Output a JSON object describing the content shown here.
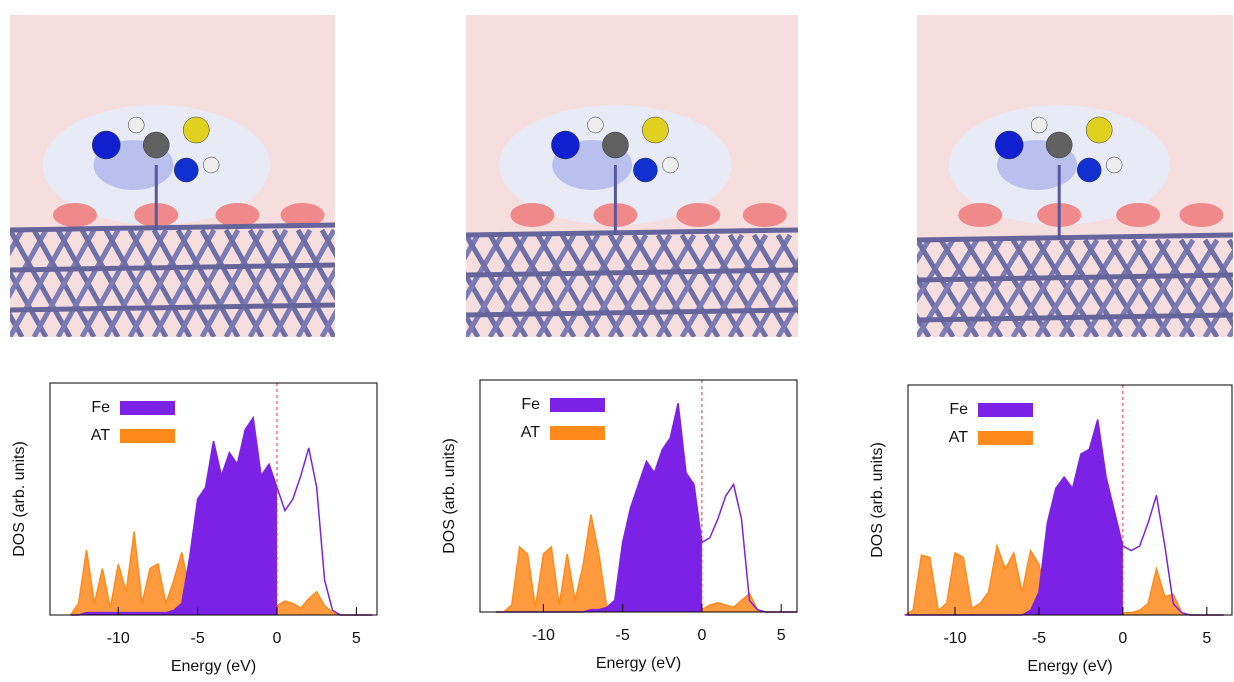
{
  "chart_data": [
    {
      "type": "dos",
      "x_label": "Energy (eV)",
      "y_label": "DOS (arb. units)",
      "xlim": [
        -14.3,
        6.3
      ],
      "ylim": [
        0,
        1
      ],
      "xticks": [
        -10,
        -5,
        0,
        5
      ],
      "fermi_level": 0,
      "x": [
        -13,
        -12.5,
        -12,
        -11.5,
        -11,
        -10.5,
        -10,
        -9.5,
        -9,
        -8.5,
        -8,
        -7.5,
        -7,
        -6.5,
        -6,
        -5.5,
        -5,
        -4.5,
        -4,
        -3.5,
        -3,
        -2.5,
        -2,
        -1.5,
        -1,
        -0.5,
        0,
        0.5,
        1,
        1.5,
        2,
        2.5,
        3,
        3.5,
        4,
        4.5,
        5,
        5.5,
        6
      ],
      "series": [
        {
          "name": "Fe",
          "color": "#7b22e6",
          "values": [
            0,
            0,
            0.01,
            0.01,
            0.01,
            0.01,
            0.01,
            0.01,
            0.01,
            0.01,
            0.01,
            0.01,
            0.01,
            0.02,
            0.05,
            0.25,
            0.5,
            0.55,
            0.75,
            0.6,
            0.7,
            0.65,
            0.8,
            0.85,
            0.6,
            0.65,
            0.55,
            0.45,
            0.5,
            0.6,
            0.72,
            0.55,
            0.15,
            0.02,
            0,
            0,
            0,
            0,
            0
          ]
        },
        {
          "name": "AT",
          "color": "#ff8a1c",
          "values": [
            0,
            0.05,
            0.28,
            0.05,
            0.2,
            0.03,
            0.22,
            0.1,
            0.36,
            0.05,
            0.2,
            0.22,
            0.05,
            0.15,
            0.27,
            0.1,
            0.2,
            0.3,
            0.2,
            0.08,
            0.05,
            0.06,
            0.05,
            0.04,
            0.05,
            0.04,
            0.04,
            0.06,
            0.05,
            0.03,
            0.07,
            0.1,
            0.04,
            0.01,
            0,
            0,
            0,
            0,
            0
          ]
        }
      ]
    },
    {
      "type": "dos",
      "x_label": "Energy (eV)",
      "y_label": "DOS (arb. units)",
      "xlim": [
        -14,
        6
      ],
      "ylim": [
        0,
        1
      ],
      "xticks": [
        -10,
        -5,
        0,
        5
      ],
      "fermi_level": 0,
      "x": [
        -13,
        -12.5,
        -12,
        -11.5,
        -11,
        -10.5,
        -10,
        -9.5,
        -9,
        -8.5,
        -8,
        -7.5,
        -7,
        -6.5,
        -6,
        -5.5,
        -5,
        -4.5,
        -4,
        -3.5,
        -3,
        -2.5,
        -2,
        -1.5,
        -1,
        -0.5,
        0,
        0.5,
        1,
        1.5,
        2,
        2.5,
        3,
        3.5,
        4,
        4.5,
        5,
        5.5,
        6
      ],
      "series": [
        {
          "name": "Fe",
          "color": "#7b22e6",
          "values": [
            0,
            0,
            0,
            0,
            0,
            0,
            0,
            0,
            0,
            0,
            0,
            0,
            0.01,
            0.01,
            0.02,
            0.05,
            0.3,
            0.45,
            0.55,
            0.65,
            0.6,
            0.7,
            0.75,
            0.9,
            0.6,
            0.55,
            0.3,
            0.32,
            0.4,
            0.5,
            0.55,
            0.4,
            0.05,
            0.01,
            0,
            0,
            0,
            0,
            0
          ]
        },
        {
          "name": "AT",
          "color": "#ff8a1c",
          "values": [
            0,
            0,
            0.03,
            0.28,
            0.25,
            0.02,
            0.25,
            0.28,
            0.03,
            0.25,
            0.05,
            0.2,
            0.42,
            0.25,
            0.02,
            0.05,
            0.1,
            0.28,
            0.3,
            0.25,
            0.15,
            0.1,
            0.05,
            0.2,
            0.05,
            0.02,
            0.01,
            0.03,
            0.04,
            0.03,
            0.02,
            0.05,
            0.08,
            0.01,
            0,
            0,
            0,
            0,
            0
          ]
        }
      ]
    },
    {
      "type": "dos",
      "x_label": "Energy (eV)",
      "y_label": "DOS (arb. units)",
      "xlim": [
        -12.8,
        6.5
      ],
      "ylim": [
        0,
        1
      ],
      "xticks": [
        -10,
        -5,
        0,
        5
      ],
      "fermi_level": 0,
      "x": [
        -13,
        -12.5,
        -12,
        -11.5,
        -11,
        -10.5,
        -10,
        -9.5,
        -9,
        -8.5,
        -8,
        -7.5,
        -7,
        -6.5,
        -6,
        -5.5,
        -5,
        -4.5,
        -4,
        -3.5,
        -3,
        -2.5,
        -2,
        -1.5,
        -1,
        -0.5,
        0,
        0.5,
        1,
        1.5,
        2,
        2.5,
        3,
        3.5,
        4,
        4.5,
        5,
        5.5,
        6
      ],
      "series": [
        {
          "name": "Fe",
          "color": "#7b22e6",
          "values": [
            0,
            0,
            0,
            0,
            0,
            0,
            0,
            0,
            0,
            0,
            0,
            0,
            0,
            0,
            0,
            0.02,
            0.1,
            0.4,
            0.55,
            0.6,
            0.55,
            0.7,
            0.72,
            0.85,
            0.6,
            0.45,
            0.3,
            0.28,
            0.3,
            0.4,
            0.52,
            0.3,
            0.05,
            0.01,
            0,
            0,
            0,
            0,
            0
          ]
        },
        {
          "name": "AT",
          "color": "#ff8a1c",
          "values": [
            0,
            0.02,
            0.26,
            0.25,
            0.02,
            0.05,
            0.27,
            0.25,
            0.03,
            0.05,
            0.1,
            0.3,
            0.2,
            0.27,
            0.1,
            0.28,
            0.22,
            0.05,
            0.12,
            0.25,
            0.02,
            0.05,
            0.22,
            0.02,
            0.01,
            0.01,
            0.01,
            0.01,
            0.02,
            0.05,
            0.2,
            0.08,
            0.09,
            0.01,
            0,
            0,
            0,
            0,
            0
          ]
        }
      ]
    }
  ]
}
